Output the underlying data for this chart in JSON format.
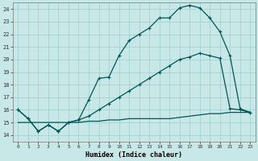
{
  "bg_color": "#c8e8e8",
  "grid_color": "#a0cccc",
  "line_color": "#005555",
  "xlabel": "Humidex (Indice chaleur)",
  "xlim": [
    -0.5,
    23.5
  ],
  "ylim": [
    13.5,
    24.5
  ],
  "xticks": [
    0,
    1,
    2,
    3,
    4,
    5,
    6,
    7,
    8,
    9,
    10,
    11,
    12,
    13,
    14,
    15,
    16,
    17,
    18,
    19,
    20,
    21,
    22,
    23
  ],
  "yticks": [
    14,
    15,
    16,
    17,
    18,
    19,
    20,
    21,
    22,
    23,
    24
  ],
  "arch_x": [
    0,
    1,
    2,
    3,
    4,
    5,
    6,
    7,
    8,
    9,
    10,
    11,
    12,
    13,
    14,
    15,
    16,
    17,
    18,
    19,
    20,
    21,
    22,
    23
  ],
  "arch_y": [
    16,
    15.3,
    14.3,
    14.8,
    14.3,
    15.0,
    15.2,
    16.8,
    18.5,
    18.6,
    20.3,
    21.5,
    22.0,
    22.5,
    23.3,
    23.3,
    24.1,
    24.3,
    24.1,
    23.3,
    22.2,
    20.3,
    16.1,
    15.8
  ],
  "diag_x": [
    0,
    1,
    2,
    3,
    4,
    5,
    6,
    7,
    8,
    9,
    10,
    11,
    12,
    13,
    14,
    15,
    16,
    17,
    18,
    19,
    20,
    21,
    22,
    23
  ],
  "diag_y": [
    16,
    15.3,
    14.3,
    14.8,
    14.3,
    15.0,
    15.2,
    15.5,
    16.0,
    16.5,
    17.0,
    17.5,
    18.0,
    18.5,
    19.0,
    19.5,
    20.0,
    20.2,
    20.5,
    20.3,
    20.1,
    16.1,
    16.0,
    15.8
  ],
  "flat_x": [
    0,
    1,
    2,
    3,
    4,
    5,
    6,
    7,
    8,
    9,
    10,
    11,
    12,
    13,
    14,
    15,
    16,
    17,
    18,
    19,
    20,
    21,
    22,
    23
  ],
  "flat_y": [
    15.0,
    15.0,
    15.0,
    15.0,
    15.0,
    15.0,
    15.0,
    15.1,
    15.1,
    15.2,
    15.2,
    15.3,
    15.3,
    15.3,
    15.3,
    15.3,
    15.4,
    15.5,
    15.6,
    15.7,
    15.7,
    15.8,
    15.8,
    15.8
  ]
}
